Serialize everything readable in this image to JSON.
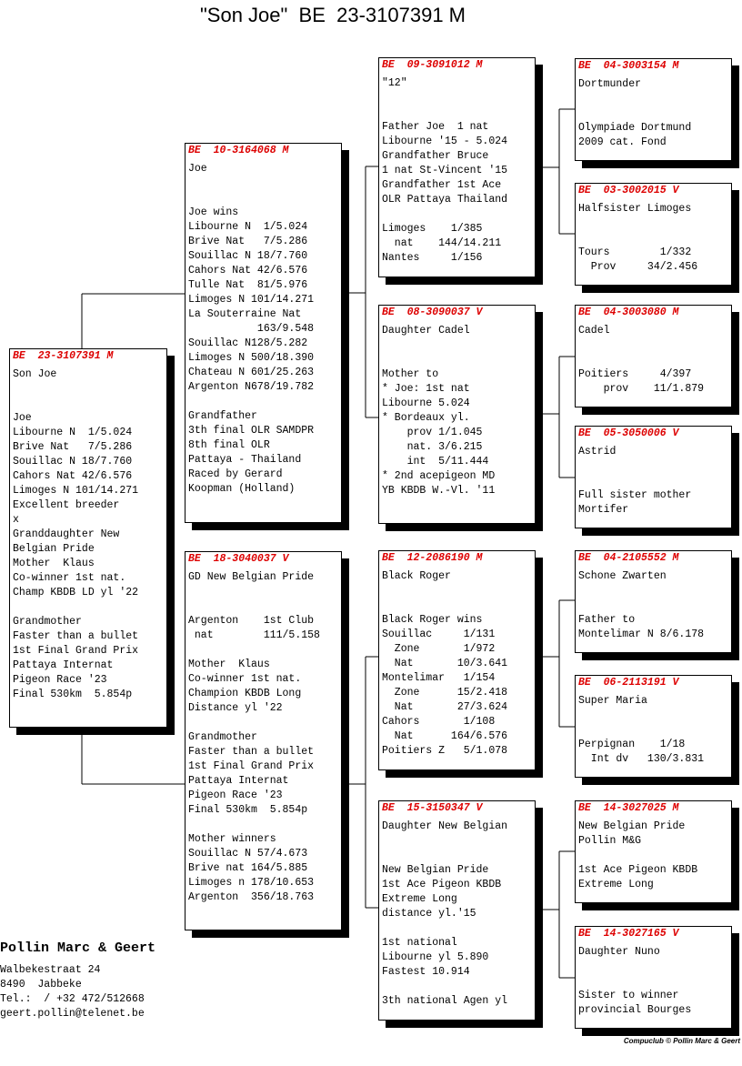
{
  "title": "\"Son Joe\"  BE  23-3107391 M",
  "boxes": [
    {
      "header": "BE  23-3107391 M",
      "groups": [
        [
          "Son Joe"
        ],
        [
          "Joe",
          "Libourne N  1/5.024",
          "Brive Nat   7/5.286",
          "Souillac N 18/7.760",
          "Cahors Nat 42/6.576",
          "Limoges N 101/14.271",
          "Excellent breeder",
          "x",
          "Granddaughter New",
          "Belgian Pride",
          "Mother  Klaus",
          "Co-winner 1st nat.",
          "Champ KBDB LD yl '22"
        ],
        [
          "Grandmother",
          "Faster than a bullet",
          "1st Final Grand Prix",
          "Pattaya Internat",
          "Pigeon Race '23",
          "Final 530km  5.854p"
        ]
      ]
    },
    {
      "header": "BE  10-3164068 M",
      "groups": [
        [
          "Joe"
        ],
        [
          "Joe wins",
          "Libourne N  1/5.024",
          "Brive Nat   7/5.286",
          "Souillac N 18/7.760",
          "Cahors Nat 42/6.576",
          "Tulle Nat  81/5.976",
          "Limoges N 101/14.271",
          "La Souterraine Nat",
          "           163/9.548",
          "Souillac N128/5.282",
          "Limoges N 500/18.390",
          "Chateau N 601/25.263",
          "Argenton N678/19.782"
        ],
        [
          "Grandfather",
          "3th final OLR SAMDPR",
          "8th final OLR",
          "Pattaya - Thailand",
          "Raced by Gerard",
          "Koopman (Holland)"
        ]
      ]
    },
    {
      "header": "BE  18-3040037 V",
      "groups": [
        [
          "GD New Belgian Pride"
        ],
        [
          "Argenton    1st Club",
          " nat        111/5.158"
        ],
        [
          "Mother  Klaus",
          "Co-winner 1st nat.",
          "Champion KBDB Long",
          "Distance yl '22"
        ],
        [
          "Grandmother",
          "Faster than a bullet",
          "1st Final Grand Prix",
          "Pattaya Internat",
          "Pigeon Race '23",
          "Final 530km  5.854p"
        ],
        [
          "Mother winners",
          "Souillac N 57/4.673",
          "Brive nat 164/5.885",
          "Limoges n 178/10.653",
          "Argenton  356/18.763"
        ]
      ]
    },
    {
      "header": "BE  09-3091012 M",
      "groups": [
        [
          "\"12\""
        ],
        [
          "Father Joe  1 nat",
          "Libourne '15 - 5.024",
          "Grandfather Bruce",
          "1 nat St-Vincent '15",
          "Grandfather 1st Ace",
          "OLR Pattaya Thailand"
        ],
        [
          "Limoges    1/385",
          "  nat    144/14.211",
          "Nantes     1/156"
        ]
      ]
    },
    {
      "header": "BE  08-3090037 V",
      "groups": [
        [
          "Daughter Cadel"
        ],
        [
          "Mother to",
          "* Joe: 1st nat",
          "Libourne 5.024",
          "* Bordeaux yl.",
          "    prov 1/1.045",
          "    nat. 3/6.215",
          "    int  5/11.444",
          "* 2nd acepigeon MD",
          "YB KBDB W.-Vl. '11"
        ]
      ]
    },
    {
      "header": "BE  12-2086190 M",
      "groups": [
        [
          "Black Roger"
        ],
        [
          "Black Roger wins",
          "Souillac     1/131",
          "  Zone       1/972",
          "  Nat       10/3.641",
          "Montelimar   1/154",
          "  Zone      15/2.418",
          "  Nat       27/3.624",
          "Cahors       1/108",
          "  Nat      164/6.576",
          "Poitiers Z   5/1.078"
        ]
      ]
    },
    {
      "header": "BE  15-3150347 V",
      "groups": [
        [
          "Daughter New Belgian"
        ],
        [
          "New Belgian Pride",
          "1st Ace Pigeon KBDB",
          "Extreme Long",
          "distance yl.'15"
        ],
        [
          "1st national",
          "Libourne yl 5.890",
          "Fastest 10.914"
        ],
        [
          "3th national Agen yl"
        ]
      ]
    },
    {
      "header": "BE  04-3003154 M",
      "groups": [
        [
          "Dortmunder"
        ],
        [
          "Olympiade Dortmund",
          "2009 cat. Fond"
        ]
      ]
    },
    {
      "header": "BE  03-3002015 V",
      "groups": [
        [
          "Halfsister Limoges"
        ],
        [
          "Tours        1/332",
          "  Prov     34/2.456"
        ]
      ]
    },
    {
      "header": "BE  04-3003080 M",
      "groups": [
        [
          "Cadel"
        ],
        [
          "Poitiers     4/397",
          "    prov    11/1.879"
        ]
      ]
    },
    {
      "header": "BE  05-3050006 V",
      "groups": [
        [
          "Astrid"
        ],
        [
          "Full sister mother",
          "Mortifer"
        ]
      ]
    },
    {
      "header": "BE  04-2105552 M",
      "groups": [
        [
          "Schone Zwarten"
        ],
        [
          "Father to",
          "Montelimar N 8/6.178"
        ]
      ]
    },
    {
      "header": "BE  06-2113191 V",
      "groups": [
        [
          "Super Maria"
        ],
        [
          "Perpignan    1/18",
          "  Int dv   130/3.831"
        ]
      ]
    },
    {
      "header": "BE  14-3027025 M",
      "groups": [
        [
          "New Belgian Pride",
          "Pollin M&G"
        ],
        [
          "1st Ace Pigeon KBDB",
          "Extreme Long"
        ]
      ]
    },
    {
      "header": "BE  14-3027165 V",
      "groups": [
        [
          "Daughter Nuno"
        ],
        [
          "Sister to winner",
          "provincial Bourges"
        ]
      ]
    }
  ],
  "footer": {
    "name": "Pollin Marc & Geert",
    "lines": [
      "Walbekestraat 24",
      "8490  Jabbeke",
      "Tel.:  / +32 472/512668",
      "geert.pollin@telenet.be"
    ],
    "credit": "Compuclub © Pollin Marc & Geert"
  }
}
